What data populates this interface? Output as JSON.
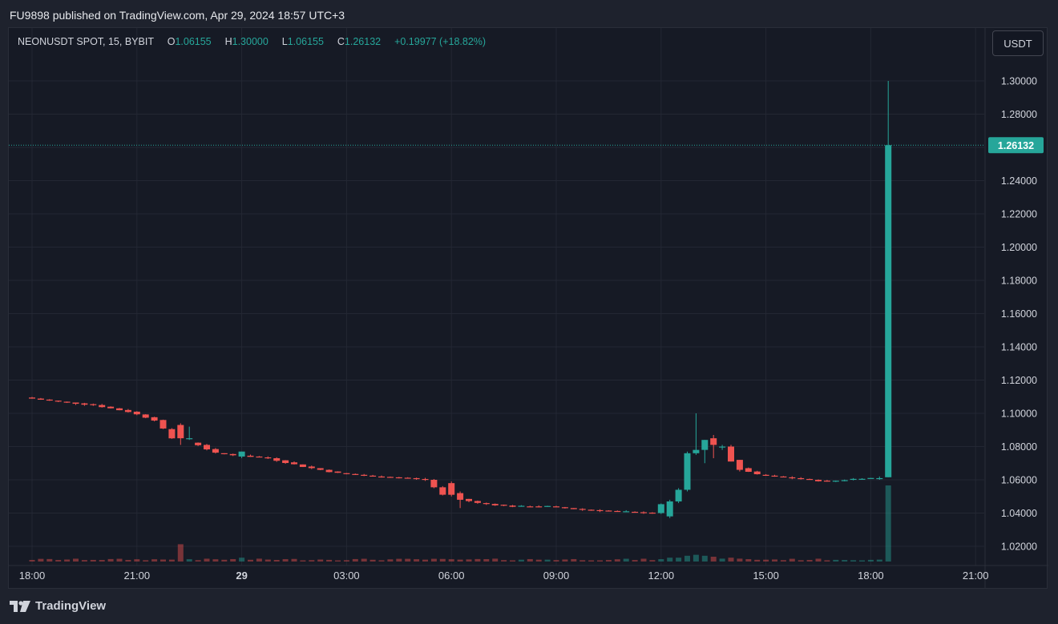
{
  "header": {
    "published_line": "FU9898 published on TradingView.com, Apr 29, 2024 18:57 UTC+3"
  },
  "legend": {
    "symbol": "NEONUSDT SPOT, 15, BYBIT",
    "o_label": "O",
    "o_value": "1.06155",
    "h_label": "H",
    "h_value": "1.30000",
    "l_label": "L",
    "l_value": "1.06155",
    "c_label": "C",
    "c_value": "1.26132",
    "change": "+0.19977 (+18.82%)"
  },
  "currency_button": "USDT",
  "footer": {
    "brand": "TradingView",
    "logo_icon": "tradingview-logo-icon"
  },
  "colors": {
    "up": "#26a69a",
    "down": "#ef5350",
    "grid": "#232733",
    "bg": "#161a25",
    "price_line": "#26a69a"
  },
  "chart_data": {
    "type": "candlestick",
    "x_unit": "hours since 18:00 Apr 28",
    "x_ticks": [
      {
        "x": 0,
        "label": "18:00",
        "bold": false
      },
      {
        "x": 3,
        "label": "21:00",
        "bold": false
      },
      {
        "x": 6,
        "label": "29",
        "bold": true
      },
      {
        "x": 9,
        "label": "03:00",
        "bold": false
      },
      {
        "x": 12,
        "label": "06:00",
        "bold": false
      },
      {
        "x": 15,
        "label": "09:00",
        "bold": false
      },
      {
        "x": 18,
        "label": "12:00",
        "bold": false
      },
      {
        "x": 21,
        "label": "15:00",
        "bold": false
      },
      {
        "x": 24,
        "label": "18:00",
        "bold": false
      },
      {
        "x": 27,
        "label": "21:00",
        "bold": false
      }
    ],
    "y_ticks": [
      "1.30000",
      "1.28000",
      "1.24000",
      "1.22000",
      "1.20000",
      "1.18000",
      "1.16000",
      "1.14000",
      "1.12000",
      "1.10000",
      "1.08000",
      "1.06000",
      "1.04000",
      "1.02000"
    ],
    "y_tick_values": [
      1.3,
      1.28,
      1.24,
      1.22,
      1.2,
      1.18,
      1.16,
      1.14,
      1.12,
      1.1,
      1.08,
      1.06,
      1.04,
      1.02
    ],
    "grid_y_values": [
      1.3,
      1.28,
      1.26,
      1.24,
      1.22,
      1.2,
      1.18,
      1.16,
      1.14,
      1.12,
      1.1,
      1.08,
      1.06,
      1.04,
      1.02
    ],
    "last_price": 1.26132,
    "last_price_label": "1.26132",
    "keypoints": [
      [
        0,
        1.1095
      ],
      [
        1,
        1.107
      ],
      [
        2,
        1.105
      ],
      [
        3,
        1.101
      ],
      [
        3.75,
        1.096
      ],
      [
        4.25,
        1.085
      ],
      [
        5,
        1.081
      ],
      [
        5.5,
        1.076
      ],
      [
        6,
        1.075
      ],
      [
        7,
        1.073
      ],
      [
        8,
        1.068
      ],
      [
        9,
        1.064
      ],
      [
        10,
        1.062
      ],
      [
        11,
        1.061
      ],
      [
        11.5,
        1.06
      ],
      [
        12,
        1.051
      ],
      [
        13,
        1.046
      ],
      [
        14,
        1.044
      ],
      [
        15,
        1.044
      ],
      [
        16,
        1.042
      ],
      [
        17,
        1.041
      ],
      [
        18,
        1.04
      ],
      [
        18.5,
        1.05
      ],
      [
        19.0,
        1.076
      ],
      [
        19.5,
        1.083
      ],
      [
        19.9,
        1.078
      ],
      [
        20.25,
        1.069
      ],
      [
        21,
        1.063
      ],
      [
        22,
        1.061
      ],
      [
        23,
        1.059
      ],
      [
        24,
        1.061
      ],
      [
        24.5,
        1.061
      ]
    ],
    "special_candles": [
      {
        "x": 4.25,
        "o": 1.093,
        "h": 1.094,
        "l": 1.081,
        "c": 1.085,
        "vol": 9
      },
      {
        "x": 4.5,
        "o": 1.085,
        "h": 1.092,
        "l": 1.084,
        "c": 1.085,
        "vol": 1.2
      },
      {
        "x": 6,
        "o": 1.074,
        "h": 1.077,
        "l": 1.073,
        "c": 1.077,
        "vol": 2
      },
      {
        "x": 12,
        "o": 1.058,
        "h": 1.059,
        "l": 1.05,
        "c": 1.051,
        "vol": 1.2
      },
      {
        "x": 12.25,
        "o": 1.052,
        "h": 1.053,
        "l": 1.043,
        "c": 1.048,
        "vol": 1
      },
      {
        "x": 18.25,
        "o": 1.038,
        "h": 1.048,
        "l": 1.037,
        "c": 1.047,
        "vol": 2
      },
      {
        "x": 18.5,
        "o": 1.047,
        "h": 1.055,
        "l": 1.046,
        "c": 1.054,
        "vol": 2
      },
      {
        "x": 18.75,
        "o": 1.054,
        "h": 1.077,
        "l": 1.053,
        "c": 1.076,
        "vol": 3
      },
      {
        "x": 19.0,
        "o": 1.076,
        "h": 1.1,
        "l": 1.075,
        "c": 1.078,
        "vol": 3.5
      },
      {
        "x": 19.25,
        "o": 1.078,
        "h": 1.084,
        "l": 1.07,
        "c": 1.084,
        "vol": 3
      },
      {
        "x": 19.5,
        "o": 1.085,
        "h": 1.087,
        "l": 1.073,
        "c": 1.081,
        "vol": 2.5
      },
      {
        "x": 19.75,
        "o": 1.08,
        "h": 1.081,
        "l": 1.078,
        "c": 1.08,
        "vol": 1.5
      },
      {
        "x": 20.0,
        "o": 1.08,
        "h": 1.081,
        "l": 1.071,
        "c": 1.071,
        "vol": 2
      },
      {
        "x": 20.25,
        "o": 1.072,
        "h": 1.072,
        "l": 1.065,
        "c": 1.066,
        "vol": 1.5
      },
      {
        "x": 24.25,
        "o": 1.061,
        "h": 1.062,
        "l": 1.06,
        "c": 1.061,
        "vol": 1
      },
      {
        "x": 24.5,
        "o": 1.06155,
        "h": 1.3,
        "l": 1.06155,
        "c": 1.26132,
        "vol": 100
      }
    ]
  }
}
